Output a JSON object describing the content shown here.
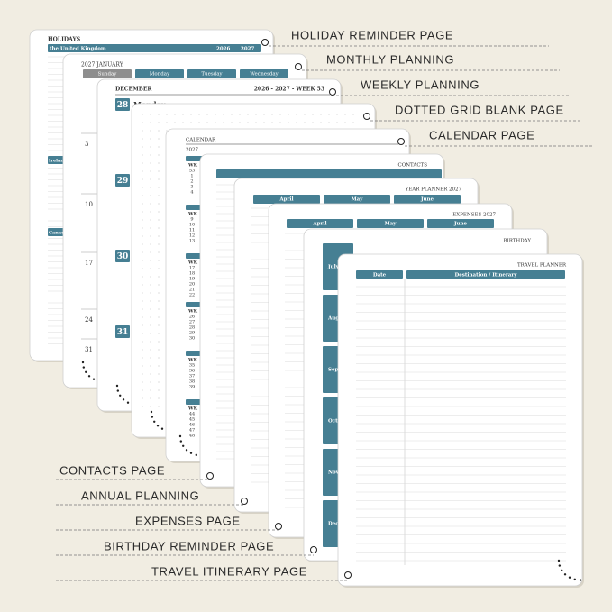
{
  "labels_right": [
    "HOLIDAY REMINDER PAGE",
    "MONTHLY PLANNING",
    "WEEKLY PLANNING",
    "DOTTED GRID BLANK PAGE",
    "CALENDAR PAGE"
  ],
  "labels_left": [
    "CONTACTS PAGE",
    "ANNUAL PLANNING",
    "EXPENSES PAGE",
    "BIRTHDAY REMINDER PAGE",
    "TRAVEL ITINERARY PAGE"
  ],
  "holidays": {
    "title": "HOLIDAYS",
    "country": "the United Kingdom",
    "years": [
      "2026",
      "2027"
    ],
    "sections": [
      "Ireland",
      "Canada"
    ]
  },
  "monthly": {
    "title": "2027 JANUARY",
    "days": [
      "Sunday",
      "Monday",
      "Tuesday",
      "Wednesday"
    ],
    "weeks": [
      "3",
      "10",
      "17",
      "24",
      "31"
    ]
  },
  "weekly": {
    "title": "DECEMBER",
    "week": "2026 - 2027 - WEEK 53",
    "dates": [
      "28",
      "29",
      "30",
      "31"
    ],
    "day": "Monday"
  },
  "calendar": {
    "title": "CALENDAR",
    "year": "2027",
    "wk": "WK",
    "groups": [
      [
        "53",
        "1",
        "2",
        "3",
        "4"
      ],
      [
        "9",
        "10",
        "11",
        "12",
        "13"
      ],
      [
        "17",
        "18",
        "19",
        "20",
        "21",
        "22"
      ],
      [
        "26",
        "27",
        "28",
        "29",
        "30"
      ],
      [
        "35",
        "36",
        "37",
        "38",
        "39"
      ],
      [
        "44",
        "45",
        "46",
        "47",
        "48"
      ]
    ]
  },
  "contacts": {
    "title": "CONTACTS"
  },
  "year_planner": {
    "title": "YEAR PLANNER 2027",
    "months": [
      "April",
      "May",
      "June"
    ]
  },
  "expenses": {
    "title": "EXPENSES 2027",
    "months": [
      "April",
      "May",
      "June"
    ]
  },
  "birthday": {
    "title": "BIRTHDAY",
    "months": [
      "July",
      "August",
      "September",
      "October",
      "November",
      "December"
    ]
  },
  "travel": {
    "title": "TRAVEL PLANNER",
    "columns": [
      "Date",
      "Destination / Itinerary"
    ]
  }
}
